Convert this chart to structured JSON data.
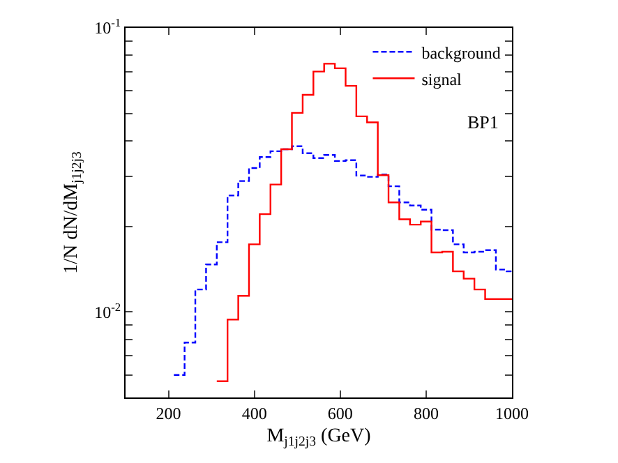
{
  "chart_data": {
    "type": "histogram",
    "xlabel": "M$_{j1j2j3}$ (GeV)",
    "ylabel": "1/N dN/dM$_{j1j2j3}$",
    "bins": [
      212.5,
      237.5,
      262.5,
      287.5,
      312.5,
      337.5,
      362.5,
      387.5,
      412.5,
      437.5,
      462.5,
      487.5,
      512.5,
      537.5,
      562.5,
      587.5,
      612.5,
      637.5,
      662.5,
      687.5,
      712.5,
      737.5,
      762.5,
      787.5,
      812.5,
      837.5,
      862.5,
      887.5,
      912.5,
      937.5,
      962.5,
      987.5,
      1000
    ],
    "series": [
      {
        "name": "background",
        "color": "#0000ff",
        "line_style": "dashed",
        "values": [
          0.006,
          0.0078,
          0.012,
          0.0147,
          0.0176,
          0.0257,
          0.0289,
          0.0321,
          0.0351,
          0.0368,
          0.0374,
          0.0383,
          0.0362,
          0.0348,
          0.0357,
          0.034,
          0.0342,
          0.0302,
          0.0299,
          0.0305,
          0.0277,
          0.0243,
          0.0237,
          0.0229,
          0.0195,
          0.0194,
          0.0173,
          0.0162,
          0.0163,
          0.0165,
          0.0141,
          0.0139
        ]
      },
      {
        "name": "signal",
        "color": "#ff0000",
        "line_style": "solid",
        "bins": [
          312.5,
          337.5,
          362.5,
          387.5,
          412.5,
          437.5,
          462.5,
          487.5,
          512.5,
          537.5,
          562.5,
          587.5,
          612.5,
          637.5,
          662.5,
          687.5,
          712.5,
          737.5,
          762.5,
          787.5,
          812.5,
          837.5,
          862.5,
          887.5,
          912.5,
          937.5,
          962.5,
          987.5,
          1000
        ],
        "values": [
          0.0057,
          0.0094,
          0.0114,
          0.0173,
          0.0221,
          0.0281,
          0.0374,
          0.0502,
          0.0581,
          0.0702,
          0.0748,
          0.0721,
          0.0625,
          0.0488,
          0.0465,
          0.0303,
          0.0243,
          0.0212,
          0.0203,
          0.0208,
          0.0162,
          0.0163,
          0.0139,
          0.0131,
          0.012,
          0.0111,
          0.0111,
          0.0111
        ]
      }
    ],
    "annotations": [
      "BP1"
    ],
    "log": true,
    "legend": "top right",
    "xlim": [
      100,
      1000
    ],
    "xticks": [
      200,
      400,
      600,
      800,
      1000
    ],
    "ylim": [
      0.005,
      0.1
    ],
    "yticks": [
      {
        "value": 0.006,
        "label": null
      },
      {
        "value": 0.007,
        "label": null
      },
      {
        "value": 0.008,
        "label": null
      },
      {
        "value": 0.009,
        "label": null
      },
      {
        "value": 0.01,
        "label": "10$^{-2}$"
      },
      {
        "value": 0.02,
        "label": null
      },
      {
        "value": 0.03,
        "label": null
      },
      {
        "value": 0.04,
        "label": null
      },
      {
        "value": 0.05,
        "label": null
      },
      {
        "value": 0.06,
        "label": null
      },
      {
        "value": 0.07,
        "label": null
      },
      {
        "value": 0.08,
        "label": null
      },
      {
        "value": 0.09,
        "label": null
      },
      {
        "value": 0.1,
        "label": "10$^{-1}$"
      }
    ]
  }
}
